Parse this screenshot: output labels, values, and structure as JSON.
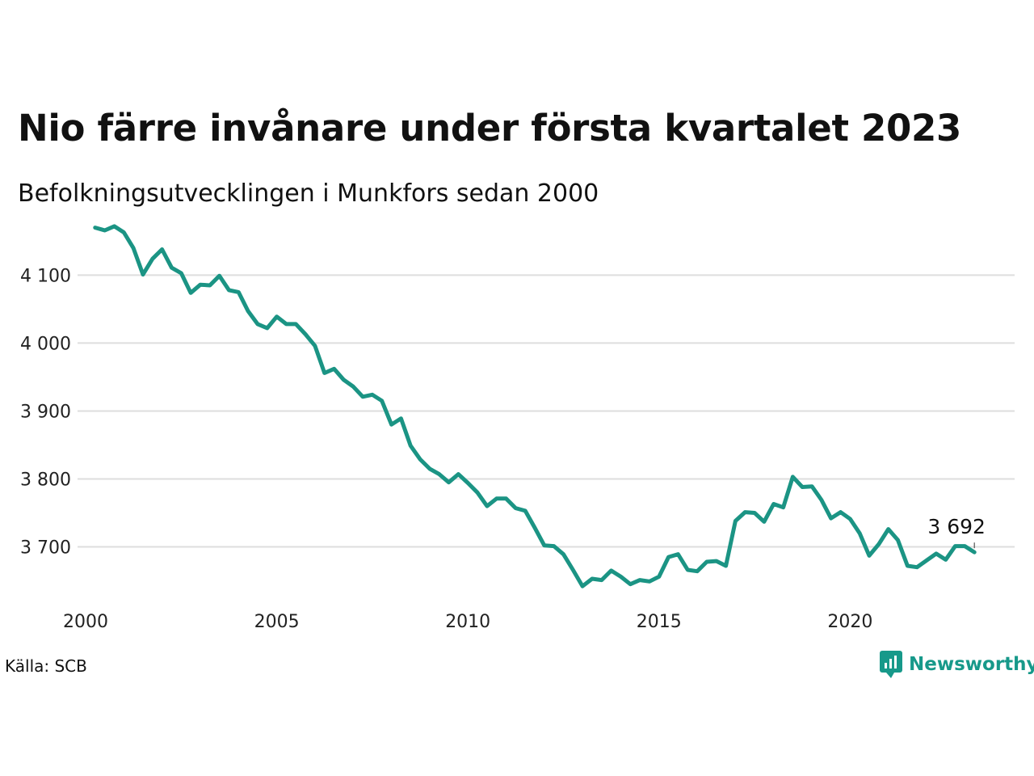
{
  "chart_data": {
    "type": "line",
    "title": "Nio färre invånare under första kvartalet 2023",
    "subtitle": "Befolkningsutvecklingen i Munkfors sedan 2000",
    "source": "Källa: SCB",
    "brand": "Newsworthy",
    "color": "#1b9484",
    "x_ticks": [
      "2000",
      "2005",
      "2010",
      "2015",
      "2020"
    ],
    "y_ticks": [
      {
        "value": 3700,
        "label": "3 700"
      },
      {
        "value": 3800,
        "label": "3 800"
      },
      {
        "value": 3900,
        "label": "3 900"
      },
      {
        "value": 4000,
        "label": "4 000"
      },
      {
        "value": 4100,
        "label": "4 100"
      }
    ],
    "xlim": [
      2000,
      2023.5
    ],
    "ylim": [
      3622,
      4160
    ],
    "grid": true,
    "annotation": {
      "label": "3 692",
      "x": 2023.25,
      "y": 3692
    },
    "series": [
      {
        "x": [
          2000.25,
          2000.5,
          2000.75,
          2001,
          2001.25,
          2001.5,
          2001.75,
          2002,
          2002.25,
          2002.5,
          2002.75,
          2003,
          2003.25,
          2003.5,
          2003.75,
          2004,
          2004.25,
          2004.5,
          2004.75,
          2005,
          2005.25,
          2005.5,
          2005.75,
          2006,
          2006.25,
          2006.5,
          2006.75,
          2007,
          2007.25,
          2007.5,
          2007.75,
          2008,
          2008.25,
          2008.5,
          2008.75,
          2009,
          2009.25,
          2009.5,
          2009.75,
          2010,
          2010.25,
          2010.5,
          2010.75,
          2011,
          2011.25,
          2011.5,
          2011.75,
          2012,
          2012.25,
          2012.5,
          2012.75,
          2013,
          2013.25,
          2013.5,
          2013.75,
          2014,
          2014.25,
          2014.5,
          2014.75,
          2015,
          2015.25,
          2015.5,
          2015.75,
          2016,
          2016.25,
          2016.5,
          2016.75,
          2017,
          2017.25,
          2017.5,
          2017.75,
          2018,
          2018.25,
          2018.5,
          2018.75,
          2019,
          2019.25,
          2019.5,
          2019.75,
          2020,
          2020.25,
          2020.5,
          2020.75,
          2021,
          2021.25,
          2021.5,
          2021.75,
          2022,
          2022.25,
          2022.5,
          2022.75,
          2023,
          2023.25
        ],
        "values": [
          4170,
          4166,
          4172,
          4163,
          4140,
          4101,
          4124,
          4138,
          4111,
          4103,
          4074,
          4086,
          4085,
          4099,
          4078,
          4075,
          4047,
          4028,
          4022,
          4039,
          4028,
          4028,
          4013,
          3996,
          3956,
          3962,
          3946,
          3936,
          3921,
          3924,
          3915,
          3880,
          3889,
          3849,
          3829,
          3815,
          3807,
          3795,
          3807,
          3794,
          3780,
          3760,
          3771,
          3771,
          3757,
          3753,
          3728,
          3702,
          3701,
          3689,
          3666,
          3642,
          3653,
          3651,
          3665,
          3656,
          3645,
          3651,
          3649,
          3656,
          3685,
          3689,
          3666,
          3664,
          3678,
          3679,
          3672,
          3738,
          3751,
          3750,
          3737,
          3763,
          3758,
          3803,
          3788,
          3789,
          3769,
          3742,
          3751,
          3741,
          3720,
          3687,
          3704,
          3726,
          3710,
          3672,
          3670,
          3680,
          3690,
          3681,
          3701,
          3701,
          3692
        ]
      }
    ]
  }
}
